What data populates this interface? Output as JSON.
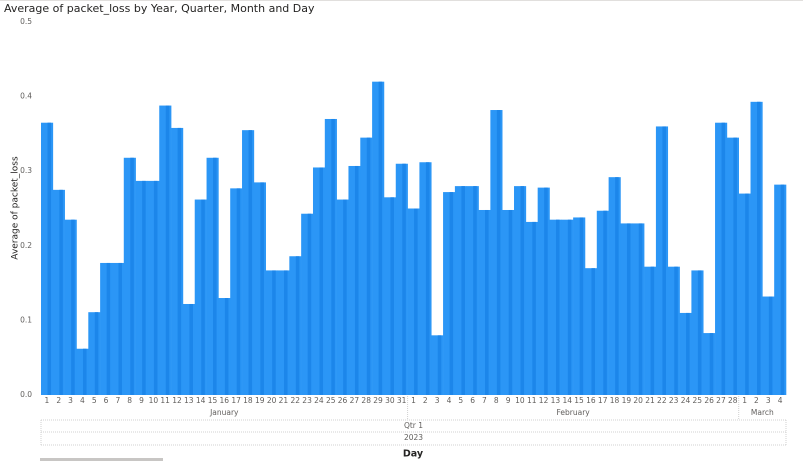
{
  "chart_data": {
    "type": "bar",
    "title": "Average of packet_loss by Year, Quarter, Month and Day",
    "y_label": "Average of packet_loss",
    "x_label": "Day",
    "year": "2023",
    "quarter": "Qtr 1",
    "color": "#2b96f6",
    "stripe_color": "#1c86ea",
    "ylim": [
      0,
      0.5
    ],
    "yticks": [
      {
        "value": 0,
        "label": "0.0"
      },
      0.1,
      0.2,
      0.3,
      0.4,
      0.5
    ],
    "months": [
      {
        "label": "January",
        "days": [
          "1",
          "2",
          "3",
          "4",
          "5",
          "6",
          "7",
          "8",
          "9",
          "10",
          "11",
          "12",
          "13",
          "14",
          "15",
          "16",
          "17",
          "18",
          "19",
          "20",
          "21",
          "22",
          "23",
          "24",
          "25",
          "26",
          "27",
          "28",
          "29",
          "30",
          "31"
        ],
        "values": [
          0.365,
          0.275,
          0.235,
          0.062,
          0.111,
          0.177,
          0.177,
          0.318,
          0.287,
          0.287,
          0.388,
          0.358,
          0.122,
          0.262,
          0.318,
          0.13,
          0.277,
          0.355,
          0.285,
          0.167,
          0.167,
          0.186,
          0.243,
          0.305,
          0.37,
          0.262,
          0.307,
          0.345,
          0.42,
          0.265,
          0.31
        ]
      },
      {
        "label": "February",
        "days": [
          "1",
          "2",
          "3",
          "4",
          "5",
          "6",
          "7",
          "8",
          "9",
          "10",
          "11",
          "12",
          "13",
          "14",
          "15",
          "16",
          "17",
          "18",
          "19",
          "20",
          "21",
          "22",
          "23",
          "24",
          "25",
          "26",
          "27",
          "28"
        ],
        "values": [
          0.25,
          0.312,
          0.08,
          0.272,
          0.28,
          0.28,
          0.248,
          0.382,
          0.248,
          0.28,
          0.232,
          0.278,
          0.235,
          0.235,
          0.238,
          0.17,
          0.247,
          0.292,
          0.23,
          0.23,
          0.172,
          0.36,
          0.172,
          0.11,
          0.167,
          0.083,
          0.365,
          0.345
        ]
      },
      {
        "label": "March",
        "days": [
          "1",
          "2",
          "3",
          "4"
        ],
        "values": [
          0.27,
          0.393,
          0.132,
          0.282
        ]
      }
    ]
  }
}
